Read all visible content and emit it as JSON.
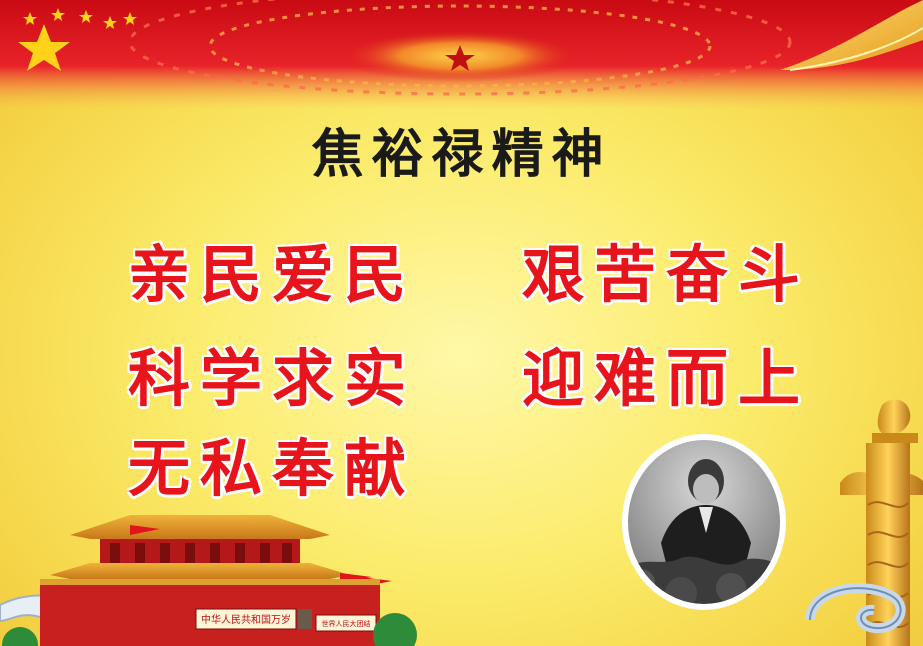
{
  "poster": {
    "title": "焦裕禄精神",
    "slogans": [
      "亲民爱民",
      "艰苦奋斗",
      "科学求实",
      "迎难而上",
      "无私奉献"
    ],
    "gate_sign": "中华人民共和国万岁",
    "gate_sign_right": "世界人民大团结"
  },
  "colors": {
    "title": "#1a1a1a",
    "slogan": "#e8141b",
    "background": "#fbeb6a",
    "band_red": "#e0141a"
  },
  "icons": [
    "star-icon",
    "national-emblem-icon",
    "tiananmen-gate-icon",
    "huabiao-column-icon",
    "portrait-photo"
  ]
}
